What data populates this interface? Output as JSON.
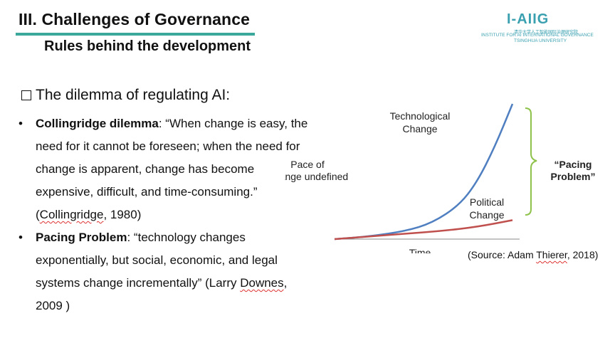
{
  "header": {
    "title": "III. Challenges of Governance",
    "subtitle": "Rules behind the development",
    "logo": {
      "mark": "I-AIIG",
      "cn": "清华大学人工智能国际治理研究院",
      "en_line1": "INSTITUTE FOR AI INTERNATIONAL GOVERNANCE",
      "en_line2": "TSINGHUA UNIVERSITY",
      "color": "#3aa0b0"
    },
    "accent_color": "#3aa89b"
  },
  "section": {
    "heading": "The dilemma of regulating AI:",
    "icon": "checkbox-icon"
  },
  "bullets": [
    {
      "term": "Collingridge dilemma",
      "text": ": “When change is easy, the need for it cannot be foreseen; when the need for change is apparent, change has become expensive, difficult, and time-consuming.” (",
      "cite_name": "Collingridge",
      "cite_end": ", 1980)"
    },
    {
      "term": "Pacing Problem",
      "text": ": “technology changes exponentially, but social, economic, and legal systems change incrementally” (Larry ",
      "cite_name": "Downes",
      "cite_end": ", 2009 )"
    }
  ],
  "chart_data": {
    "type": "line",
    "ylabel": "Pace of Change",
    "xlabel": "Time",
    "series": [
      {
        "name": "Technological Change",
        "color": "#4f7fc0",
        "x": [
          0,
          0.2,
          0.4,
          0.55,
          0.7,
          0.8,
          0.9,
          1.0
        ],
        "y": [
          0,
          0.02,
          0.06,
          0.12,
          0.25,
          0.42,
          0.68,
          1.0
        ]
      },
      {
        "name": "Political Change",
        "color": "#c0504d",
        "x": [
          0,
          0.2,
          0.4,
          0.6,
          0.8,
          1.0
        ],
        "y": [
          0,
          0.02,
          0.04,
          0.06,
          0.09,
          0.14
        ]
      }
    ],
    "annotation": {
      "label": "“Pacing Problem”",
      "bracket_color": "#8ec24a"
    },
    "grid": false
  },
  "source": {
    "prefix": "(Source: Adam ",
    "name": "Thierer",
    "suffix": ", 2018)"
  }
}
